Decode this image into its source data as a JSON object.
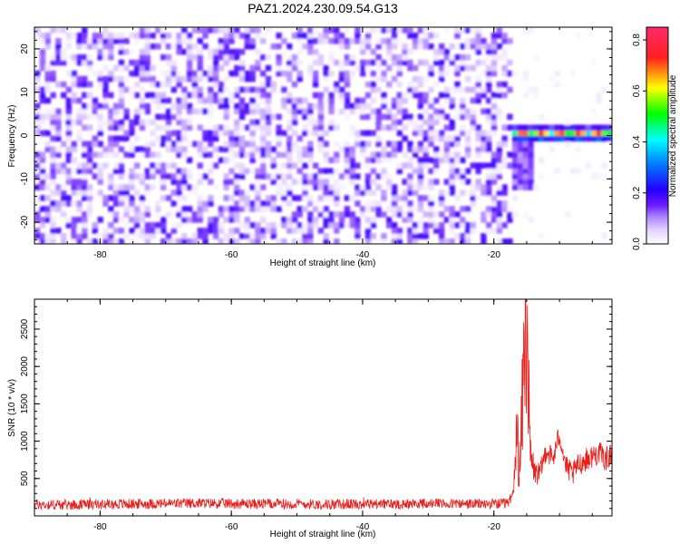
{
  "title": "PAZ1.2024.230.09.54.G13",
  "colors": {
    "snr_line": "#e8201c",
    "spectrogram_base": "#8a2be2",
    "colormap": [
      "#ffffff",
      "#e6d6ff",
      "#b08cff",
      "#6a1aff",
      "#2200ff",
      "#00ffff",
      "#00ff00",
      "#ffff00",
      "#ff2020",
      "#ff2a6a"
    ]
  },
  "chart_data": [
    {
      "type": "heatmap",
      "title": "",
      "xlabel": "Height of straight line (km)",
      "ylabel": "Frequency (Hz)",
      "xlim": [
        -90,
        -2
      ],
      "ylim": [
        -25,
        25
      ],
      "x_ticks": [
        "-80",
        "-60",
        "-40",
        "-20"
      ],
      "x_tick_values": [
        -80,
        -60,
        -40,
        -20
      ],
      "y_ticks": [
        "-20",
        "-10",
        "0",
        "10",
        "20"
      ],
      "y_tick_values": [
        -20,
        -10,
        0,
        10,
        20
      ],
      "colorbar": {
        "label": "Normalized spectral amplitude",
        "ticks": [
          "0.0",
          "0.2",
          "0.4",
          "0.6",
          "0.8"
        ],
        "tick_values": [
          0.0,
          0.2,
          0.4,
          0.6,
          0.8
        ],
        "range": [
          0.0,
          0.85
        ]
      },
      "noise_region": {
        "x": [
          -90,
          -17
        ],
        "y": [
          -25,
          25
        ],
        "amplitude": [
          0.0,
          0.15
        ]
      },
      "signal_tone": {
        "x": [
          -17,
          -2
        ],
        "frequency": 0.5,
        "amplitude_max": 0.85
      },
      "transition_burst": {
        "x": [
          -17,
          -14
        ],
        "y": [
          -12,
          2
        ],
        "amplitude": [
          0.1,
          0.15
        ]
      }
    },
    {
      "type": "line",
      "title": "",
      "xlabel": "Height of straight line (km)",
      "ylabel": "SNR (10 * v/v)",
      "xlim": [
        -90,
        -2
      ],
      "ylim": [
        0,
        2900
      ],
      "x_ticks": [
        "-80",
        "-60",
        "-40",
        "-20"
      ],
      "x_tick_values": [
        -80,
        -60,
        -40,
        -20
      ],
      "y_ticks": [
        "500",
        "1000",
        "1500",
        "2000",
        "2500"
      ],
      "y_tick_values": [
        500,
        1000,
        1500,
        2000,
        2500
      ],
      "series": [
        {
          "x": [
            -90,
            -85,
            -80,
            -75,
            -70,
            -65,
            -60,
            -55,
            -50,
            -45,
            -40,
            -35,
            -30,
            -25,
            -20,
            -18,
            -17,
            -16.5,
            -16,
            -15.5,
            -15,
            -14.5,
            -14,
            -13,
            -12,
            -11,
            -10,
            -9,
            -8,
            -7,
            -6,
            -5,
            -4,
            -3,
            -2
          ],
          "y": [
            150,
            150,
            155,
            160,
            165,
            170,
            165,
            160,
            160,
            155,
            160,
            160,
            165,
            160,
            160,
            160,
            300,
            1100,
            600,
            1900,
            2900,
            800,
            600,
            550,
            900,
            750,
            1100,
            650,
            550,
            700,
            750,
            800,
            850,
            750,
            850
          ]
        }
      ]
    }
  ]
}
